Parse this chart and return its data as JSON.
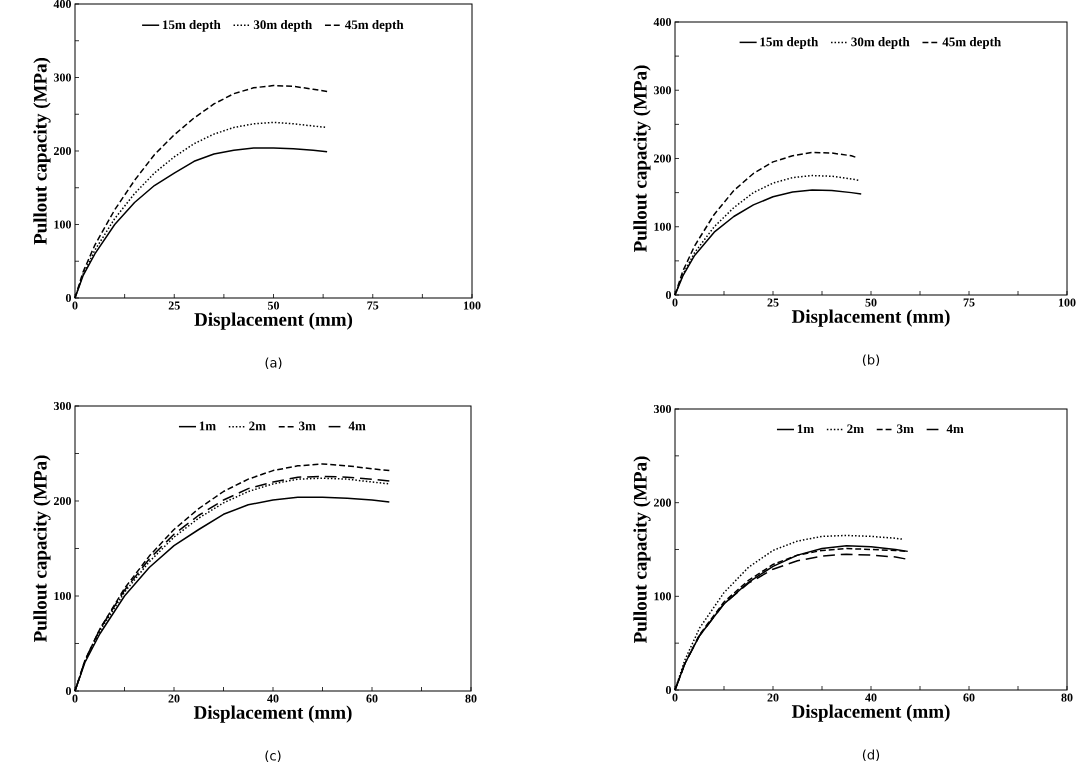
{
  "chart_data": [
    {
      "type": "line",
      "xlabel": "Displacement (mm)",
      "ylabel": "Pullout capacity (MPa)",
      "annotations": [
        "(a)"
      ],
      "xlim": [
        0,
        100
      ],
      "ylim": [
        0,
        400
      ],
      "xticks": [
        0,
        {
          "value": 12.5,
          "label": null
        },
        25,
        {
          "value": 37.5,
          "label": null
        },
        50,
        {
          "value": 62.5,
          "label": null
        },
        75,
        {
          "value": 87.5,
          "label": null
        },
        100
      ],
      "yticks": [
        0,
        {
          "value": 50,
          "label": null
        },
        100,
        {
          "value": 150,
          "label": null
        },
        200,
        {
          "value": 250,
          "label": null
        },
        300,
        {
          "value": 350,
          "label": null
        },
        400
      ],
      "legend": "top",
      "grid": false,
      "series": [
        {
          "name": "15m depth",
          "color": "#000000",
          "line_style": "solid",
          "x": [
            0,
            2,
            5,
            10,
            15,
            20,
            25,
            30,
            35,
            40,
            45,
            50,
            55,
            60,
            63.5
          ],
          "values": [
            0,
            30,
            60,
            100,
            130,
            153,
            170,
            186,
            196,
            201,
            204,
            204,
            203,
            201,
            199
          ]
        },
        {
          "name": "30m depth",
          "color": "#000000",
          "line_style": "dotted",
          "x": [
            0,
            2,
            5,
            10,
            15,
            20,
            25,
            30,
            35,
            40,
            45,
            50,
            55,
            60,
            63.5
          ],
          "values": [
            0,
            32,
            65,
            108,
            142,
            170,
            192,
            210,
            223,
            232,
            237,
            239,
            237,
            234,
            232
          ]
        },
        {
          "name": "45m depth",
          "color": "#000000",
          "line_style": "dashed",
          "x": [
            0,
            2,
            5,
            10,
            15,
            20,
            25,
            30,
            35,
            40,
            45,
            50,
            55,
            60,
            63.5
          ],
          "values": [
            0,
            35,
            72,
            120,
            160,
            195,
            222,
            245,
            264,
            278,
            286,
            289,
            288,
            284,
            281
          ]
        }
      ]
    },
    {
      "type": "line",
      "xlabel": "Displacement (mm)",
      "ylabel": "Pullout capacity (MPa)",
      "annotations": [
        "(b)"
      ],
      "xlim": [
        0,
        100
      ],
      "ylim": [
        0,
        400
      ],
      "xticks": [
        0,
        {
          "value": 12.5,
          "label": null
        },
        25,
        {
          "value": 37.5,
          "label": null
        },
        50,
        {
          "value": 62.5,
          "label": null
        },
        75,
        {
          "value": 87.5,
          "label": null
        },
        100
      ],
      "yticks": [
        0,
        {
          "value": 50,
          "label": null
        },
        100,
        {
          "value": 150,
          "label": null
        },
        200,
        {
          "value": 250,
          "label": null
        },
        300,
        {
          "value": 350,
          "label": null
        },
        400
      ],
      "legend": "top",
      "grid": false,
      "series": [
        {
          "name": "15m depth",
          "color": "#000000",
          "line_style": "solid",
          "x": [
            0,
            2,
            5,
            10,
            15,
            20,
            25,
            30,
            35,
            40,
            45,
            47.5
          ],
          "values": [
            0,
            28,
            58,
            92,
            115,
            132,
            144,
            151,
            154,
            153,
            150,
            148
          ]
        },
        {
          "name": "30m depth",
          "color": "#000000",
          "line_style": "dotted",
          "x": [
            0,
            2,
            5,
            10,
            15,
            20,
            25,
            30,
            35,
            40,
            45,
            47
          ],
          "values": [
            0,
            30,
            62,
            100,
            128,
            150,
            164,
            172,
            175,
            174,
            170,
            168
          ]
        },
        {
          "name": "45m depth",
          "color": "#000000",
          "line_style": "dashed",
          "x": [
            0,
            2,
            5,
            10,
            15,
            20,
            25,
            30,
            35,
            40,
            45,
            46
          ],
          "values": [
            0,
            35,
            72,
            118,
            153,
            178,
            195,
            204,
            209,
            208,
            204,
            202
          ]
        }
      ]
    },
    {
      "type": "line",
      "xlabel": "Displacement (mm)",
      "ylabel": "Pullout capacity (MPa)",
      "annotations": [
        "(c)"
      ],
      "xlim": [
        0,
        80
      ],
      "ylim": [
        0,
        300
      ],
      "xticks": [
        0,
        {
          "value": 10,
          "label": null
        },
        20,
        {
          "value": 30,
          "label": null
        },
        40,
        {
          "value": 50,
          "label": null
        },
        60,
        {
          "value": 70,
          "label": null
        },
        80
      ],
      "yticks": [
        0,
        {
          "value": 50,
          "label": null
        },
        100,
        {
          "value": 150,
          "label": null
        },
        200,
        {
          "value": 250,
          "label": null
        },
        300
      ],
      "legend": "top",
      "grid": false,
      "series": [
        {
          "name": "1m",
          "color": "#000000",
          "line_style": "solid",
          "x": [
            0,
            2,
            5,
            10,
            15,
            20,
            25,
            30,
            35,
            40,
            45,
            50,
            55,
            60,
            63.5
          ],
          "values": [
            0,
            30,
            60,
            100,
            130,
            153,
            170,
            186,
            196,
            201,
            204,
            204,
            203,
            201,
            199
          ]
        },
        {
          "name": "2m",
          "color": "#000000",
          "line_style": "dotted",
          "x": [
            0,
            2,
            5,
            10,
            15,
            20,
            25,
            30,
            35,
            40,
            45,
            50,
            55,
            60,
            63.5
          ],
          "values": [
            0,
            31,
            63,
            104,
            136,
            162,
            182,
            198,
            210,
            218,
            223,
            224,
            223,
            220,
            218
          ]
        },
        {
          "name": "3m",
          "color": "#000000",
          "line_style": "dashed",
          "x": [
            0,
            2,
            5,
            10,
            15,
            20,
            25,
            30,
            35,
            40,
            45,
            50,
            55,
            60,
            63.5
          ],
          "values": [
            0,
            32,
            65,
            108,
            142,
            170,
            192,
            210,
            223,
            232,
            237,
            239,
            237,
            234,
            232
          ]
        },
        {
          "name": "4m",
          "color": "#000000",
          "line_style": "dashed",
          "x": [
            0,
            2,
            5,
            10,
            15,
            20,
            25,
            30,
            35,
            40,
            45,
            50,
            55,
            60,
            63.5
          ],
          "values": [
            0,
            32,
            65,
            106,
            139,
            165,
            185,
            201,
            213,
            220,
            225,
            226,
            225,
            223,
            221
          ]
        }
      ]
    },
    {
      "type": "line",
      "xlabel": "Displacement (mm)",
      "ylabel": "Pullout capacity (MPa)",
      "annotations": [
        "(d)"
      ],
      "xlim": [
        0,
        80
      ],
      "ylim": [
        0,
        300
      ],
      "xticks": [
        0,
        {
          "value": 10,
          "label": null
        },
        20,
        {
          "value": 30,
          "label": null
        },
        40,
        {
          "value": 50,
          "label": null
        },
        60,
        {
          "value": 70,
          "label": null
        },
        80
      ],
      "yticks": [
        0,
        {
          "value": 50,
          "label": null
        },
        100,
        {
          "value": 150,
          "label": null
        },
        200,
        {
          "value": 250,
          "label": null
        },
        300
      ],
      "legend": "top",
      "grid": false,
      "series": [
        {
          "name": "1m",
          "color": "#000000",
          "line_style": "solid",
          "x": [
            0,
            2,
            5,
            10,
            15,
            20,
            25,
            30,
            35,
            40,
            45,
            47.5
          ],
          "values": [
            0,
            28,
            58,
            92,
            115,
            132,
            144,
            151,
            154,
            153,
            150,
            148
          ]
        },
        {
          "name": "2m",
          "color": "#000000",
          "line_style": "dotted",
          "x": [
            0,
            2,
            5,
            10,
            15,
            20,
            25,
            30,
            35,
            40,
            45,
            46.5
          ],
          "values": [
            0,
            32,
            66,
            104,
            131,
            149,
            159,
            164,
            165,
            164,
            162,
            161
          ]
        },
        {
          "name": "3m",
          "color": "#000000",
          "line_style": "dashed",
          "x": [
            0,
            2,
            5,
            10,
            15,
            20,
            25,
            30,
            35,
            40,
            45,
            47
          ],
          "values": [
            0,
            28,
            59,
            94,
            117,
            134,
            144,
            149,
            151,
            150,
            149,
            148
          ]
        },
        {
          "name": "4m",
          "color": "#000000",
          "line_style": "dashed",
          "x": [
            0,
            2,
            5,
            10,
            15,
            20,
            25,
            30,
            35,
            40,
            45,
            47
          ],
          "values": [
            0,
            28,
            58,
            92,
            114,
            129,
            138,
            143,
            145,
            144,
            142,
            140
          ]
        }
      ]
    }
  ]
}
